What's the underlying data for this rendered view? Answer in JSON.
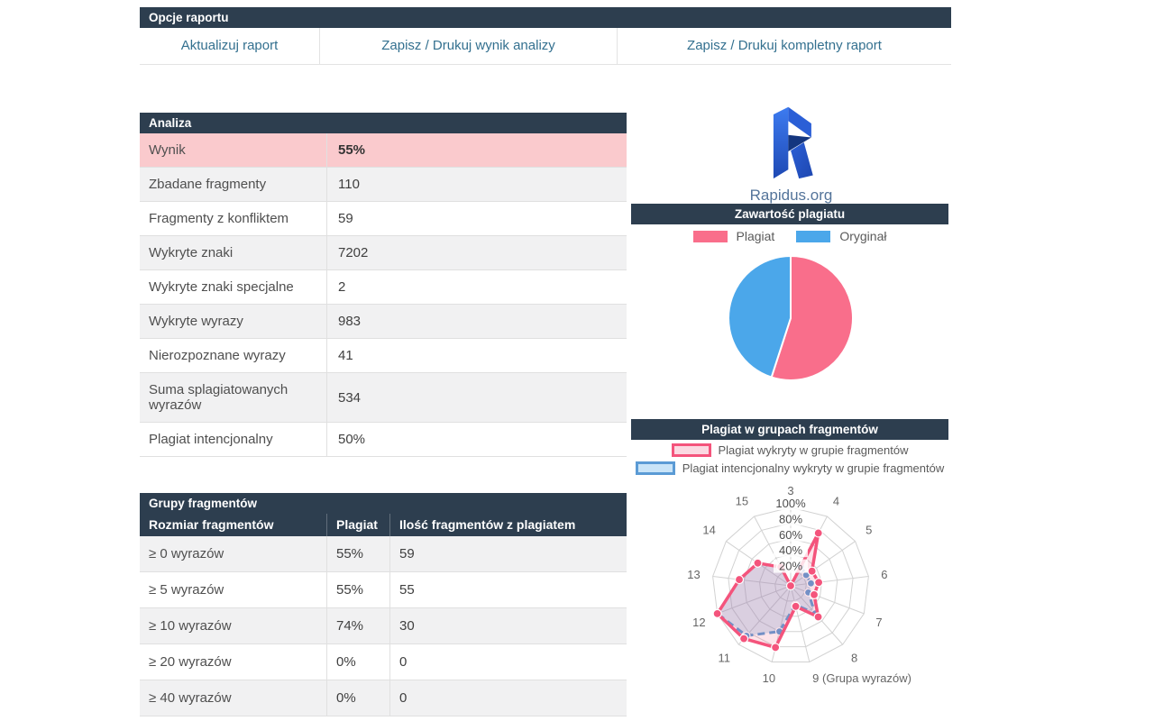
{
  "report_options": {
    "title": "Opcje raportu",
    "buttons": [
      {
        "label": "Aktualizuj raport"
      },
      {
        "label": "Zapisz / Drukuj wynik analizy"
      },
      {
        "label": "Zapisz / Drukuj kompletny raport"
      }
    ]
  },
  "analysis": {
    "title": "Analiza",
    "rows": [
      {
        "label": "Wynik",
        "value": "55%"
      },
      {
        "label": "Zbadane fragmenty",
        "value": "110"
      },
      {
        "label": "Fragmenty z konfliktem",
        "value": "59"
      },
      {
        "label": "Wykryte znaki",
        "value": "7202"
      },
      {
        "label": "Wykryte znaki specjalne",
        "value": "2"
      },
      {
        "label": "Wykryte wyrazy",
        "value": "983"
      },
      {
        "label": "Nierozpoznane wyrazy",
        "value": "41"
      },
      {
        "label": "Suma splagiatowanych wyrazów",
        "value": "534"
      },
      {
        "label": "Plagiat intencjonalny",
        "value": "50%"
      }
    ]
  },
  "groups_table": {
    "title": "Grupy fragmentów",
    "columns": [
      "Rozmiar fragmentów",
      "Plagiat",
      "Ilość fragmentów z plagiatem"
    ],
    "rows": [
      {
        "size": "≥ 0 wyrazów",
        "plagiarism": "55%",
        "count": "59"
      },
      {
        "size": "≥ 5 wyrazów",
        "plagiarism": "55%",
        "count": "55"
      },
      {
        "size": "≥ 10 wyrazów",
        "plagiarism": "74%",
        "count": "30"
      },
      {
        "size": "≥ 20 wyrazów",
        "plagiarism": "0%",
        "count": "0"
      },
      {
        "size": "≥ 40 wyrazów",
        "plagiarism": "0%",
        "count": "0"
      }
    ]
  },
  "brand": {
    "name": "Rapidus.org",
    "logo": "rapidus-r-ribbon"
  },
  "colors": {
    "header_bg": "#2d3e4f",
    "highlight_row": "#facacd",
    "alt_row": "#f1f1f2",
    "button_text": "#33708f",
    "pie_pink": "#F96E8B",
    "pie_blue": "#4BA7EA",
    "radar_pink": "#F4547C",
    "radar_blue": "#5B9BD5"
  },
  "chart_data": [
    {
      "type": "pie",
      "title": "Zawartość plagiatu",
      "legend_position": "top",
      "slices": [
        {
          "label": "Plagiat",
          "value": 55,
          "color": "#F96E8B"
        },
        {
          "label": "Oryginał",
          "value": 45,
          "color": "#4BA7EA"
        }
      ],
      "start_angle_deg": 0,
      "direction": "clockwise",
      "border_color": "#ffffff"
    },
    {
      "type": "radar",
      "title": "Plagiat w grupach fragmentów",
      "categories": [
        "3",
        "4",
        "5",
        "6",
        "7",
        "8",
        "9 (Grupa wyrazów)",
        "10",
        "11",
        "12",
        "13",
        "14",
        "15"
      ],
      "ticks": [
        "20%",
        "40%",
        "60%",
        "80%",
        "100%"
      ],
      "rlim": [
        0,
        100
      ],
      "grid": true,
      "series": [
        {
          "name": "Plagiat wykryty w grupie fragmentów",
          "color": "#F4547C",
          "fill": "rgba(244,84,124,0.16)",
          "swatch_fill": "#fbd9e2",
          "style": "solid",
          "values": [
            0,
            76,
            33,
            36,
            32,
            53,
            27,
            81,
            90,
            100,
            66,
            51,
            27
          ]
        },
        {
          "name": "Plagiat intencjonalny wykryty w grupie fragmentów",
          "color": "#5B9BD5",
          "fill": "rgba(91,155,213,0.25)",
          "swatch_fill": "#c9e4f8",
          "style": "dashed",
          "values": [
            0,
            28,
            24,
            26,
            24,
            47,
            25,
            60,
            85,
            100,
            66,
            51,
            27
          ]
        }
      ]
    }
  ]
}
